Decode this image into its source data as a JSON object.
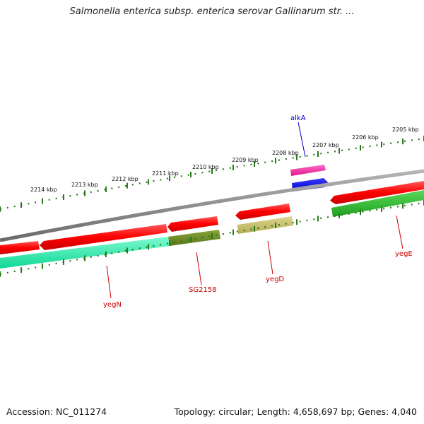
{
  "title": "Salmonella enterica subsp. enterica serovar Gallinarum str. ...",
  "footer": {
    "accession": "Accession: NC_011274",
    "topology": "Topology: circular; Length: 4,658,697 bp; Genes: 4,040"
  },
  "scale_labels": [
    "2205 kbp",
    "2206 kbp",
    "2207 kbp",
    "2208 kbp",
    "2209 kbp",
    "2210 kbp",
    "2211 kbp",
    "2212 kbp",
    "2213 kbp",
    "2214 kbp"
  ],
  "gene_labels": [
    {
      "text": "alkA",
      "color": "#0000cc"
    },
    {
      "text": "yegE",
      "color": "#cc0000"
    },
    {
      "text": "yegD",
      "color": "#cc0000"
    },
    {
      "text": "SG2158",
      "color": "#cc0000"
    },
    {
      "text": "yegN",
      "color": "#cc0000"
    }
  ],
  "colors": {
    "cds_forward": "#ff0000",
    "cds_reverse": "#ff0000",
    "alkA_top": "#ff2299",
    "alkA_bottom": "#0000ff",
    "backbone": "#888888",
    "tick_marks": "#2a7a1a",
    "cog_green": "#2ec02e",
    "cog_cyan": "#11f0aa",
    "cog_olive": "#6b8a1f",
    "cog_khaki": "#c8c070"
  }
}
